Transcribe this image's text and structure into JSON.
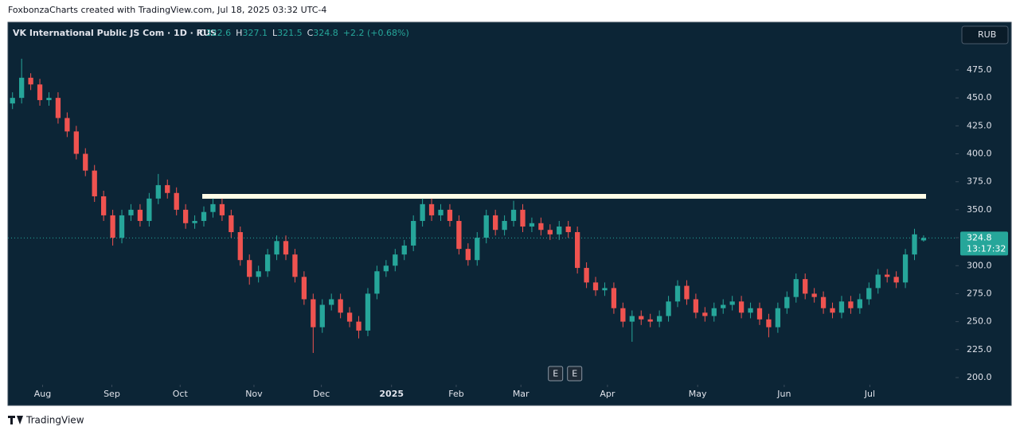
{
  "header": {
    "text": "FoxbonzaCharts created with TradingView.com, Jul 18, 2025 03:32 UTC-4"
  },
  "chart_data": {
    "type": "candlestick",
    "title": "VK International Public JS Com · 1D · RUS",
    "legend": {
      "open_label": "O",
      "high_label": "H",
      "low_label": "L",
      "close_label": "C",
      "change": "+2.2 (+0.68%)"
    },
    "currency": "RUB",
    "countdown": "13:17:32",
    "up_color": "#26a69a",
    "down_color": "#ef5350",
    "open": [
      445,
      450,
      468,
      462,
      448,
      450,
      432,
      420,
      400,
      385,
      362,
      345,
      325,
      345,
      350,
      340,
      360,
      372,
      365,
      350,
      338,
      340,
      348,
      355,
      345,
      330,
      305,
      290,
      295,
      310,
      322,
      310,
      290,
      270,
      245,
      265,
      270,
      258,
      250,
      242,
      275,
      295,
      300,
      310,
      318,
      340,
      355,
      345,
      350,
      340,
      315,
      305,
      325,
      345,
      332,
      340,
      350,
      335,
      338,
      332,
      328,
      335,
      330,
      298,
      285,
      278,
      280,
      262,
      250,
      255,
      252,
      250,
      255,
      268,
      282,
      270,
      258,
      255,
      262,
      265,
      268,
      258,
      262,
      252,
      245,
      262,
      272,
      288,
      275,
      272,
      262,
      258,
      268,
      262,
      270,
      280,
      292,
      290,
      285,
      310,
      322.6
    ],
    "high": [
      455,
      485,
      472,
      467,
      455,
      455,
      437,
      425,
      405,
      390,
      367,
      350,
      350,
      355,
      355,
      365,
      382,
      377,
      370,
      355,
      345,
      353,
      360,
      360,
      350,
      335,
      310,
      300,
      315,
      327,
      327,
      315,
      295,
      275,
      270,
      275,
      275,
      263,
      255,
      280,
      300,
      305,
      315,
      323,
      345,
      360,
      360,
      355,
      355,
      345,
      320,
      330,
      350,
      350,
      345,
      358,
      355,
      343,
      343,
      337,
      340,
      340,
      335,
      303,
      290,
      285,
      285,
      267,
      260,
      260,
      257,
      260,
      273,
      287,
      287,
      275,
      263,
      267,
      270,
      273,
      273,
      267,
      267,
      257,
      267,
      277,
      293,
      293,
      280,
      277,
      267,
      273,
      273,
      275,
      285,
      297,
      297,
      295,
      315,
      333,
      327.1
    ],
    "low": [
      440,
      445,
      457,
      443,
      443,
      427,
      415,
      395,
      380,
      357,
      340,
      318,
      320,
      340,
      335,
      335,
      355,
      360,
      345,
      333,
      333,
      335,
      343,
      340,
      325,
      300,
      283,
      285,
      290,
      305,
      305,
      285,
      265,
      222,
      240,
      260,
      253,
      245,
      235,
      237,
      270,
      290,
      295,
      305,
      313,
      335,
      340,
      340,
      335,
      310,
      300,
      300,
      320,
      327,
      327,
      335,
      330,
      330,
      327,
      323,
      323,
      325,
      293,
      280,
      273,
      273,
      257,
      245,
      232,
      247,
      245,
      245,
      250,
      263,
      265,
      253,
      250,
      250,
      257,
      260,
      253,
      253,
      247,
      236,
      240,
      257,
      267,
      270,
      267,
      257,
      253,
      253,
      257,
      257,
      265,
      275,
      285,
      280,
      280,
      305,
      321.5
    ],
    "close": [
      450,
      468,
      462,
      448,
      450,
      432,
      420,
      400,
      385,
      362,
      345,
      325,
      345,
      350,
      340,
      360,
      372,
      365,
      350,
      338,
      340,
      348,
      355,
      345,
      330,
      305,
      290,
      295,
      310,
      322,
      310,
      290,
      270,
      245,
      265,
      270,
      258,
      250,
      242,
      275,
      295,
      300,
      310,
      318,
      340,
      355,
      345,
      350,
      340,
      315,
      305,
      325,
      345,
      332,
      340,
      350,
      335,
      338,
      332,
      328,
      335,
      330,
      298,
      285,
      278,
      280,
      262,
      250,
      255,
      252,
      250,
      255,
      268,
      282,
      270,
      258,
      255,
      262,
      265,
      268,
      258,
      262,
      252,
      245,
      262,
      272,
      288,
      275,
      272,
      262,
      258,
      268,
      262,
      270,
      280,
      292,
      290,
      285,
      310,
      328,
      324.8
    ],
    "xlim": [
      -0.5,
      103.5
    ],
    "xticks": [
      {
        "value": 3.3,
        "label": "Aug"
      },
      {
        "value": 10.9,
        "label": "Sep"
      },
      {
        "value": 18.4,
        "label": "Oct"
      },
      {
        "value": 26.5,
        "label": "Nov"
      },
      {
        "value": 33.9,
        "label": "Dec"
      },
      {
        "value": 41.6,
        "label": "2025"
      },
      {
        "value": 48.7,
        "label": "Feb"
      },
      {
        "value": 55.8,
        "label": "Mar"
      },
      {
        "value": 65.3,
        "label": "Apr"
      },
      {
        "value": 75.2,
        "label": "May"
      },
      {
        "value": 84.7,
        "label": "Jun"
      },
      {
        "value": 94.1,
        "label": "Jul"
      }
    ],
    "ylim": [
      193.6,
      517.6
    ],
    "yticks": [
      {
        "value": 200,
        "label": "200.0"
      },
      {
        "value": 225,
        "label": "225.0"
      },
      {
        "value": 250,
        "label": "250.0"
      },
      {
        "value": 275,
        "label": "275.0"
      },
      {
        "value": 300,
        "label": "300.0"
      },
      {
        "value": 325,
        "label": "325.0"
      },
      {
        "value": 350,
        "label": "350.0"
      },
      {
        "value": 375,
        "label": "375.0"
      },
      {
        "value": 400,
        "label": "400.0"
      },
      {
        "value": 425,
        "label": "425.0"
      },
      {
        "value": 450,
        "label": "450.0"
      },
      {
        "value": 475,
        "label": "475.0"
      }
    ],
    "level_line": {
      "value": 362,
      "color": "#fffde7"
    },
    "events": [
      {
        "x": 59.6,
        "label": "E"
      },
      {
        "x": 61.7,
        "label": "E"
      }
    ]
  },
  "footer": {
    "brand": "TradingView"
  }
}
